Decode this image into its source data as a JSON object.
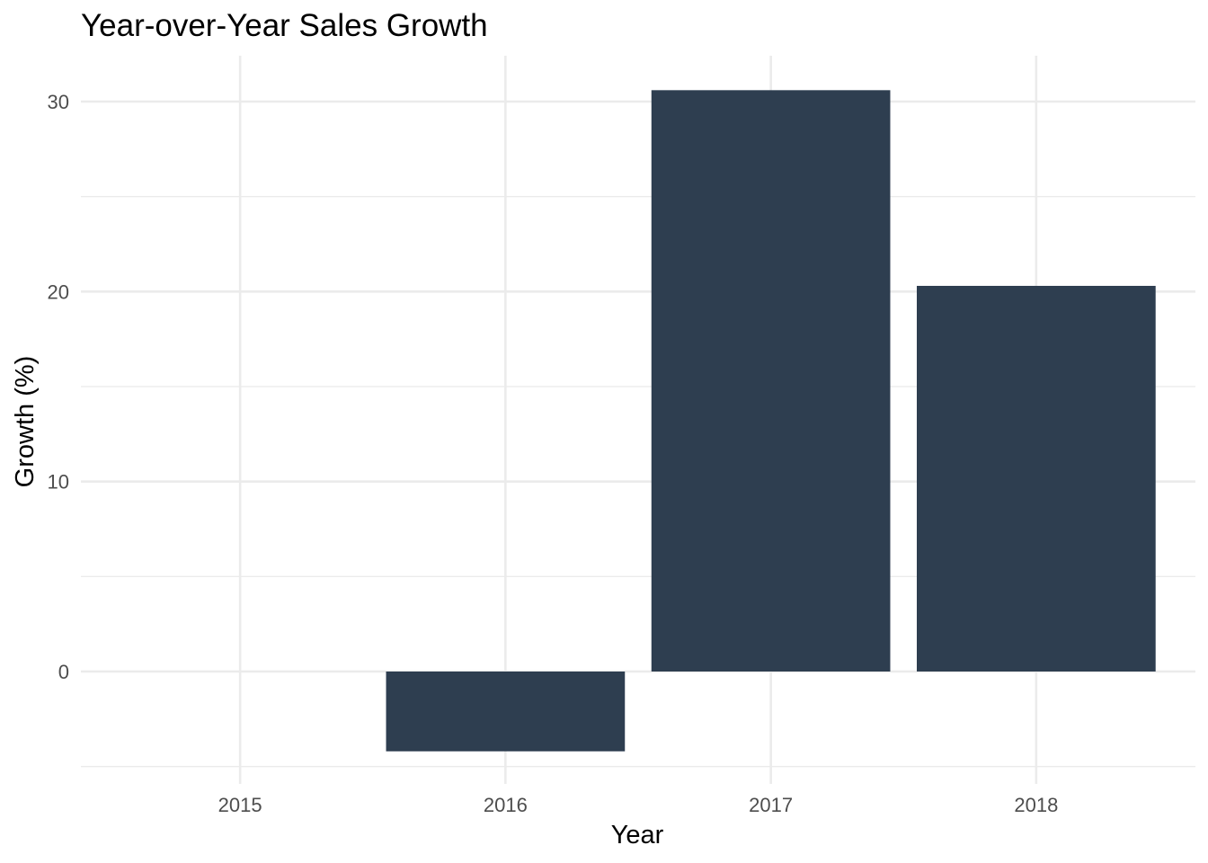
{
  "chart_data": {
    "type": "bar",
    "title": "Year-over-Year Sales Growth",
    "xlabel": "Year",
    "ylabel": "Growth (%)",
    "categories": [
      "2015",
      "2016",
      "2017",
      "2018"
    ],
    "values": [
      null,
      -4.2,
      30.6,
      20.3
    ],
    "ylim": [
      -5,
      32.4
    ],
    "yticks": [
      0,
      10,
      20,
      30
    ],
    "yticks_minor": [
      -5,
      5,
      15,
      25
    ],
    "grid": true,
    "legend": "none",
    "bar_color": "#2e3e50",
    "grid_color": "#ebebeb"
  }
}
